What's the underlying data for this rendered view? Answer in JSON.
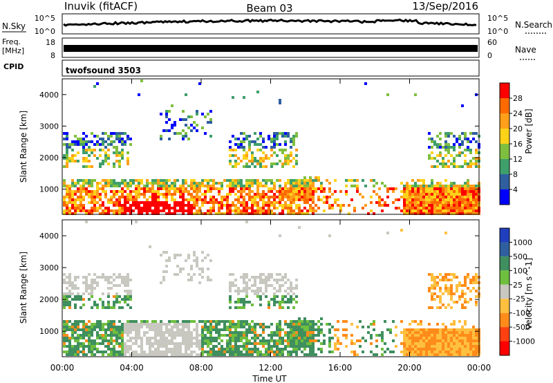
{
  "header": {
    "station": "Inuvik (fitACF)",
    "beam": "Beam 03",
    "date": "13/Sep/2016"
  },
  "strips": {
    "nsky_label": "N.Sky",
    "nsky_ticks": [
      "10^5",
      "10^0"
    ],
    "nsearch_label": "N.Search",
    "freq_label_line1": "Freq.",
    "freq_label_line2": "[MHz]",
    "freq_ticks": [
      "18",
      "8"
    ],
    "nave_label": "Nave",
    "nave_ticks": [
      "60",
      "0"
    ],
    "cpid_label": "CPID",
    "cpid_value": "twofsound 3503"
  },
  "chart_data": [
    {
      "type": "heatmap",
      "name": "power",
      "xlabel": "",
      "ylabel": "Slant Range [km]",
      "xlim": [
        0,
        24
      ],
      "ylim": [
        200,
        4500
      ],
      "y_ticks": [
        1000,
        2000,
        3000,
        4000
      ],
      "colorbar_label": "Power [dB]",
      "colorbar_ticks": [
        "28",
        "24",
        "20",
        "16",
        "12",
        "8",
        "4"
      ],
      "colorbar_colors": [
        "#ff0000",
        "#ff6a00",
        "#ff9f1a",
        "#ffd21a",
        "#7fbf3f",
        "#3f9f6a",
        "#2f5f9f",
        "#0000ff"
      ]
    },
    {
      "type": "heatmap",
      "name": "velocity",
      "xlabel": "Time UT",
      "ylabel": "Slant Range [km]",
      "x_ticks": [
        "00:00",
        "04:00",
        "08:00",
        "12:00",
        "16:00",
        "20:00",
        "00:00"
      ],
      "xlim": [
        0,
        24
      ],
      "ylim": [
        200,
        4500
      ],
      "y_ticks": [
        1000,
        2000,
        3000,
        4000
      ],
      "colorbar_label": "Velocity [m s^-1]",
      "colorbar_ticks": [
        "1000",
        "500",
        "100",
        "25",
        "-25",
        "-100",
        "-500",
        "-1000"
      ],
      "colorbar_colors": [
        "#1f3fbf",
        "#2f5f9f",
        "#3f8f5f",
        "#6fbf3f",
        "#c8c8c0",
        "#ffc040",
        "#ff8c1a",
        "#ff4010",
        "#ff0000"
      ]
    }
  ]
}
